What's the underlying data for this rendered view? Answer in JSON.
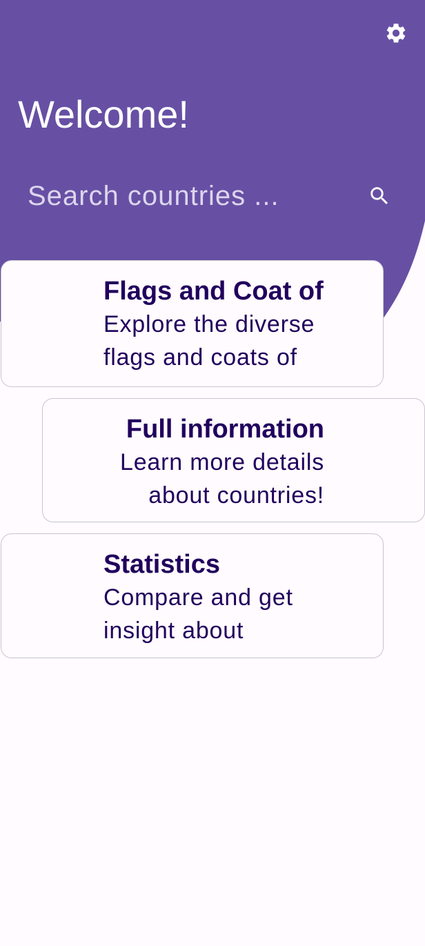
{
  "header": {
    "title": "Welcome!",
    "background_color": "#6750a4",
    "settings_icon": "gear-icon"
  },
  "search": {
    "placeholder": "Search countries ...",
    "value": "",
    "icon": "search-icon"
  },
  "cards": [
    {
      "title": "Flags and Coat of",
      "description": "Explore the diverse flags and coats of"
    },
    {
      "title": "Full information",
      "description": "Learn more details about countries!"
    },
    {
      "title": "Statistics",
      "description": "Compare and get insight about"
    }
  ],
  "colors": {
    "primary": "#6750a4",
    "on_primary": "#ffffff",
    "card_text": "#21005d",
    "card_border": "#cac4d0",
    "background": "#fffbfe"
  }
}
